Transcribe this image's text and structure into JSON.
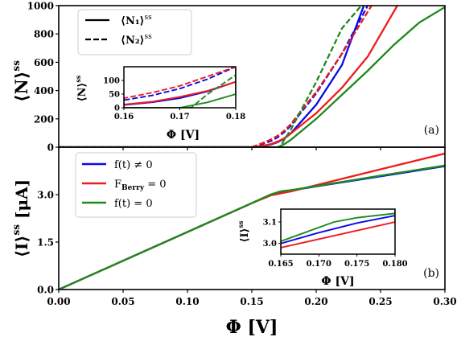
{
  "colors": {
    "blue": "#0a0ae6",
    "red": "#ee1c1c",
    "green": "#1d8a1d",
    "black": "#000000"
  },
  "chart_data": [
    {
      "id": "a",
      "type": "line",
      "panel_label": "(a)",
      "ylabel_main": "⟨N⟩",
      "ylabel_sup": "ss",
      "xlim": [
        0,
        0.3
      ],
      "ylim": [
        0,
        1000
      ],
      "yticks": [
        0,
        200,
        400,
        600,
        800,
        1000
      ],
      "ytick_labels": [
        "0",
        "200",
        "400",
        "600",
        "800",
        "1000"
      ],
      "legend": {
        "placement": "top-left",
        "entries": [
          {
            "main": "⟨N₁⟩",
            "sup": "ss",
            "style": "solid"
          },
          {
            "main": "⟨N₂⟩",
            "sup": "ss",
            "style": "dashed"
          }
        ]
      },
      "series": [
        {
          "color": "blue",
          "style": "solid",
          "points": [
            [
              0,
              0
            ],
            [
              0.15,
              0
            ],
            [
              0.16,
              10
            ],
            [
              0.165,
              20
            ],
            [
              0.17,
              35
            ],
            [
              0.175,
              60
            ],
            [
              0.18,
              95
            ],
            [
              0.2,
              300
            ],
            [
              0.22,
              580
            ],
            [
              0.237,
              1000
            ]
          ]
        },
        {
          "color": "blue",
          "style": "dashed",
          "points": [
            [
              0,
              0
            ],
            [
              0.15,
              0
            ],
            [
              0.16,
              28
            ],
            [
              0.165,
              45
            ],
            [
              0.17,
              70
            ],
            [
              0.175,
              105
            ],
            [
              0.18,
              150
            ],
            [
              0.2,
              380
            ],
            [
              0.22,
              660
            ],
            [
              0.24,
              1000
            ]
          ]
        },
        {
          "color": "red",
          "style": "solid",
          "points": [
            [
              0,
              0
            ],
            [
              0.15,
              0
            ],
            [
              0.16,
              12
            ],
            [
              0.165,
              22
            ],
            [
              0.17,
              40
            ],
            [
              0.175,
              62
            ],
            [
              0.18,
              95
            ],
            [
              0.2,
              240
            ],
            [
              0.22,
              420
            ],
            [
              0.24,
              640
            ],
            [
              0.263,
              1000
            ]
          ]
        },
        {
          "color": "red",
          "style": "dashed",
          "points": [
            [
              0,
              0
            ],
            [
              0.15,
              0
            ],
            [
              0.16,
              35
            ],
            [
              0.165,
              55
            ],
            [
              0.17,
              80
            ],
            [
              0.175,
              115
            ],
            [
              0.18,
              160
            ],
            [
              0.2,
              390
            ],
            [
              0.22,
              660
            ],
            [
              0.243,
              1000
            ]
          ]
        },
        {
          "color": "green",
          "style": "solid",
          "points": [
            [
              0,
              0
            ],
            [
              0.165,
              0
            ],
            [
              0.17,
              0
            ],
            [
              0.175,
              20
            ],
            [
              0.18,
              50
            ],
            [
              0.2,
              200
            ],
            [
              0.22,
              370
            ],
            [
              0.24,
              540
            ],
            [
              0.26,
              720
            ],
            [
              0.28,
              880
            ],
            [
              0.3,
              990
            ]
          ]
        },
        {
          "color": "green",
          "style": "dashed",
          "points": [
            [
              0,
              0
            ],
            [
              0.17,
              0
            ],
            [
              0.172,
              0
            ],
            [
              0.175,
              50
            ],
            [
              0.18,
              120
            ],
            [
              0.2,
              460
            ],
            [
              0.22,
              840
            ],
            [
              0.235,
              1000
            ]
          ]
        }
      ],
      "inset": {
        "xlabel": "Φ [V]",
        "ylabel_main": "⟨N⟩",
        "ylabel_sup": "ss",
        "xlim": [
          0.16,
          0.18
        ],
        "ylim": [
          0,
          150
        ],
        "xticks": [
          0.16,
          0.17,
          0.18
        ],
        "xtick_labels": [
          "0.16",
          "0.17",
          "0.18"
        ],
        "yticks": [
          0,
          50,
          100
        ],
        "ytick_labels": [
          "0",
          "50",
          "100"
        ]
      }
    },
    {
      "id": "b",
      "type": "line",
      "panel_label": "(b)",
      "xlabel": "Φ [V]",
      "ylabel_main": "⟨I⟩",
      "ylabel_sup": "ss",
      "ylabel_unit": "[μA]",
      "xlim": [
        0,
        0.3
      ],
      "ylim": [
        0,
        4.5
      ],
      "xticks": [
        0,
        0.05,
        0.1,
        0.15,
        0.2,
        0.25,
        0.3
      ],
      "xtick_labels": [
        "0.00",
        "0.05",
        "0.10",
        "0.15",
        "0.20",
        "0.25",
        "0.30"
      ],
      "yticks": [
        0,
        1.5,
        3.0
      ],
      "ytick_labels": [
        "0.0",
        "1.5",
        "3.0"
      ],
      "legend": {
        "placement": "top-left",
        "entries": [
          {
            "color": "blue",
            "text": "f(t) ≠ 0"
          },
          {
            "color": "red",
            "text": "F",
            "sub": "Berry",
            "text2": " = 0"
          },
          {
            "color": "green",
            "text": "f(t) = 0"
          }
        ]
      },
      "series": [
        {
          "color": "blue",
          "style": "solid",
          "points": [
            [
              0,
              0
            ],
            [
              0.05,
              0.91
            ],
            [
              0.1,
              1.82
            ],
            [
              0.15,
              2.73
            ],
            [
              0.165,
              3.0
            ],
            [
              0.17,
              3.05
            ],
            [
              0.175,
              3.095
            ],
            [
              0.18,
              3.13
            ],
            [
              0.2,
              3.26
            ],
            [
              0.25,
              3.58
            ],
            [
              0.3,
              3.9
            ]
          ]
        },
        {
          "color": "red",
          "style": "solid",
          "points": [
            [
              0,
              0
            ],
            [
              0.05,
              0.91
            ],
            [
              0.1,
              1.82
            ],
            [
              0.15,
              2.73
            ],
            [
              0.165,
              2.98
            ],
            [
              0.17,
              3.02
            ],
            [
              0.175,
              3.06
            ],
            [
              0.18,
              3.1
            ],
            [
              0.2,
              3.3
            ],
            [
              0.25,
              3.8
            ],
            [
              0.3,
              4.3
            ]
          ]
        },
        {
          "color": "green",
          "style": "solid",
          "points": [
            [
              0,
              0
            ],
            [
              0.05,
              0.91
            ],
            [
              0.1,
              1.82
            ],
            [
              0.15,
              2.73
            ],
            [
              0.165,
              3.01
            ],
            [
              0.172,
              3.1
            ],
            [
              0.175,
              3.12
            ],
            [
              0.18,
              3.14
            ],
            [
              0.2,
              3.27
            ],
            [
              0.25,
              3.6
            ],
            [
              0.3,
              3.92
            ]
          ]
        }
      ],
      "inset": {
        "xlabel": "Φ [V]",
        "ylabel_main": "⟨I⟩",
        "ylabel_sup": "ss",
        "xlim": [
          0.165,
          0.18
        ],
        "ylim": [
          2.95,
          3.16
        ],
        "xticks": [
          0.165,
          0.17,
          0.175,
          0.18
        ],
        "xtick_labels": [
          "0.165",
          "0.170",
          "0.175",
          "0.180"
        ],
        "yticks": [
          3.0,
          3.1
        ],
        "ytick_labels": [
          "3.0",
          "3.1"
        ]
      }
    }
  ]
}
